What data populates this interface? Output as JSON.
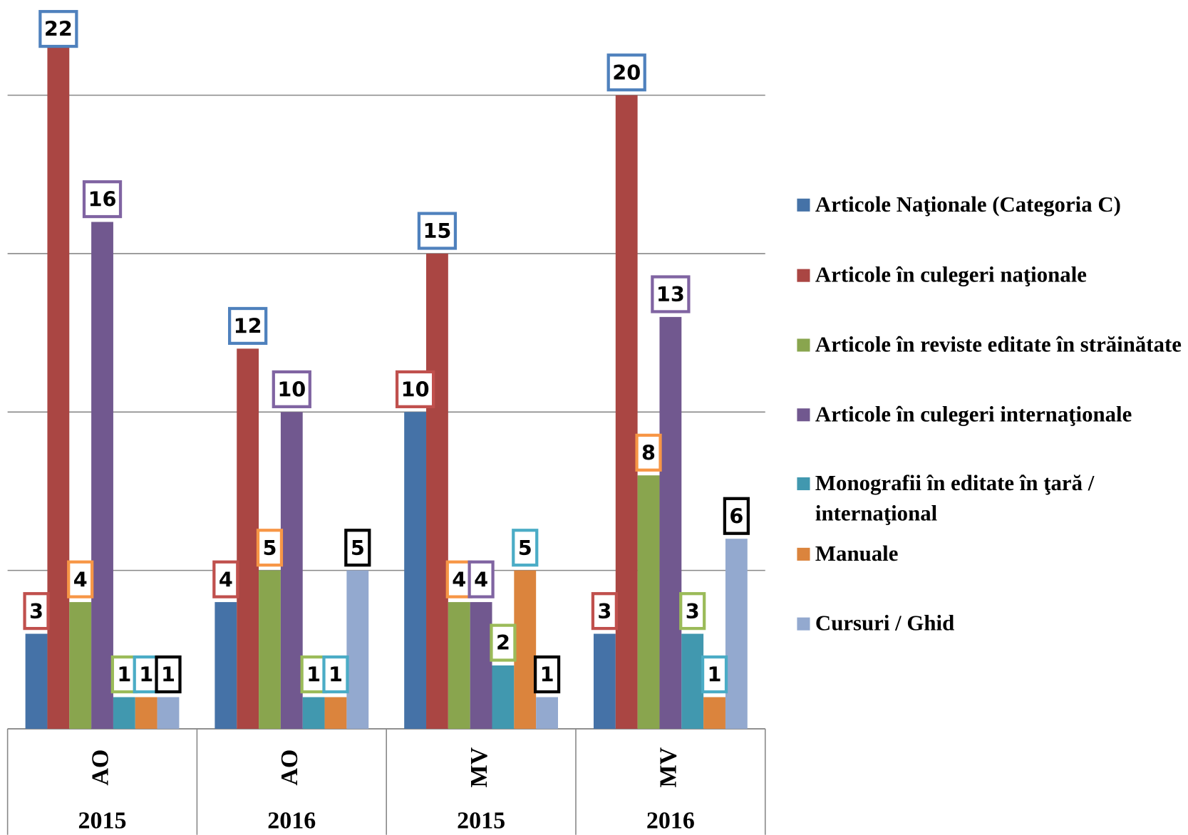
{
  "chart_data": {
    "type": "bar",
    "categories": [
      "AO",
      "AO",
      "MV",
      "MV"
    ],
    "subcategories": [
      "2015",
      "2016",
      "2015",
      "2016"
    ],
    "ylim": [
      0,
      23
    ],
    "yticks": [
      0,
      5,
      10,
      15,
      20
    ],
    "grid": true,
    "legend": "right",
    "series": [
      {
        "name": "Articole Naţionale (Categoria C)",
        "color": "#4572a7",
        "label_border": "#c0504d",
        "values": [
          3,
          4,
          10,
          3
        ]
      },
      {
        "name": "Articole în culegeri naţionale",
        "color": "#aa4643",
        "label_border": "#4f81bd",
        "values": [
          22,
          12,
          15,
          20
        ]
      },
      {
        "name": "Articole în reviste editate în străinătate",
        "color": "#89a54e",
        "label_border": "#f79646",
        "values": [
          4,
          5,
          4,
          8
        ]
      },
      {
        "name": "Articole în culegeri internaţionale",
        "color": "#71588f",
        "label_border": "#8064a2",
        "values": [
          16,
          10,
          4,
          13
        ]
      },
      {
        "name": "Monografii în editate în ţară / internaţional",
        "color": "#4198af",
        "label_border": "#9bbb59",
        "values": [
          1,
          1,
          2,
          3
        ]
      },
      {
        "name": "Manuale",
        "color": "#db843d",
        "label_border": "#4bacc6",
        "values": [
          1,
          1,
          5,
          1
        ]
      },
      {
        "name": "Cursuri / Ghid",
        "color": "#93a9cf",
        "label_border": "#000000",
        "values": [
          1,
          5,
          1,
          6
        ]
      }
    ]
  }
}
